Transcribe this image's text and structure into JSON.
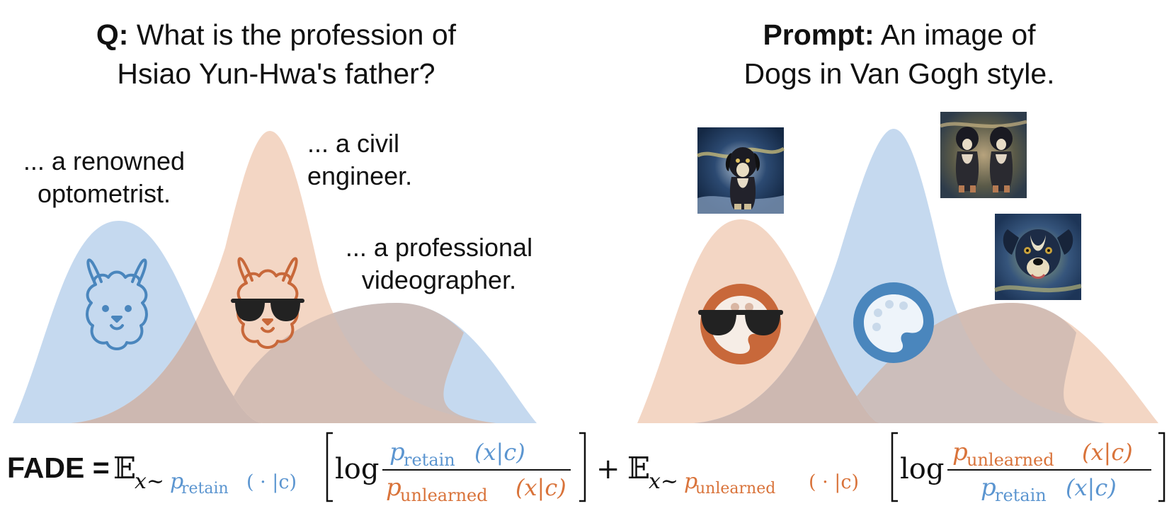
{
  "left": {
    "title_bold": "Q:",
    "title_line1": " What is the profession of",
    "title_line2": "Hsiao Yun-Hwa's father?",
    "answers": [
      {
        "line1": "... a renowned",
        "line2": "optometrist."
      },
      {
        "line1": "... a civil",
        "line2": "engineer."
      },
      {
        "line1": "... a professional",
        "line2": "videographer."
      }
    ],
    "icons": [
      "llama-icon",
      "llama-sunglasses-icon"
    ]
  },
  "right": {
    "title_bold": "Prompt:",
    "title_line1": " An image of",
    "title_line2": "Dogs in Van Gogh style.",
    "icons": [
      "palette-sunglasses-icon",
      "palette-icon"
    ],
    "images": [
      "dog-painting-1",
      "dog-painting-2",
      "dog-painting-3"
    ]
  },
  "formula": {
    "lhs": "FADE =",
    "expect": "𝔼",
    "x_sub": "x∼",
    "p": "p",
    "retain": "retain",
    "unlearned": "unlearned",
    "cond_dot": "( · |c)",
    "cond_x": "(x|c)",
    "log": "log",
    "plus": "+"
  },
  "colors": {
    "blue": "#5b95d0",
    "orange": "#d9733a",
    "blue_fill": "#c5d9ef",
    "orange_fill": "#f3d6c4",
    "overlap_fill": "#cdb8b1",
    "icon_blue": "#4a86bd",
    "icon_orange": "#c8683a"
  }
}
